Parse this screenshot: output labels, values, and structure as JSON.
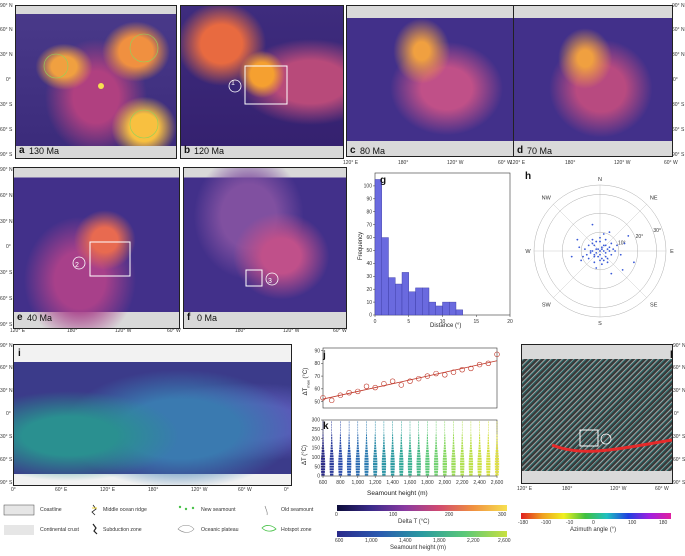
{
  "maps": [
    {
      "id": "a",
      "letter": "a",
      "age": "130 Ma"
    },
    {
      "id": "b",
      "letter": "b",
      "age": "120 Ma",
      "marker": "1"
    },
    {
      "id": "c",
      "letter": "c",
      "age": "80 Ma"
    },
    {
      "id": "d",
      "letter": "d",
      "age": "70 Ma"
    },
    {
      "id": "e",
      "letter": "e",
      "age": "40 Ma",
      "marker": "2"
    },
    {
      "id": "f",
      "letter": "f",
      "age": "0 Ma",
      "marker": "3"
    }
  ],
  "lat_ticks": [
    "90° N",
    "60° N",
    "30° N",
    "0°",
    "30° S",
    "60° S",
    "90° S"
  ],
  "lon_ticks_row": [
    "120° E",
    "180°",
    "120° W",
    "60° W"
  ],
  "lon_ticks_i": [
    "0°",
    "60° E",
    "120° E",
    "180°",
    "120° W",
    "60° W",
    "0°"
  ],
  "lat_ticks_i": [
    "90° N",
    "60° N",
    "30° N",
    "0°",
    "30° S",
    "60° S",
    "90° S"
  ],
  "panel_g": {
    "letter": "g",
    "chart_data": {
      "type": "bar",
      "xlabel": "Distance (°)",
      "ylabel": "Frequency",
      "xlim": [
        0,
        20
      ],
      "ylim": [
        0,
        110
      ],
      "x_ticks": [
        "0",
        "5",
        "10",
        "15",
        "20"
      ],
      "y_ticks": [
        "0",
        "10",
        "20",
        "30",
        "40",
        "50",
        "60",
        "70",
        "80",
        "90",
        "100"
      ],
      "bin_starts": [
        0,
        1,
        2,
        3,
        4,
        5,
        6,
        7,
        8,
        9,
        10,
        11,
        12
      ],
      "values": [
        105,
        60,
        29,
        24,
        33,
        18,
        21,
        21,
        10,
        7,
        10,
        10,
        4
      ],
      "color": "#6a6adf"
    }
  },
  "panel_h": {
    "letter": "h",
    "directions": [
      "N",
      "NE",
      "E",
      "SE",
      "S",
      "SW",
      "W",
      "NW"
    ],
    "rings": [
      "10°",
      "20°",
      "30°"
    ],
    "chart_data": {
      "type": "scatter",
      "note_points": "approximate offsets in degrees (east, north)",
      "points": [
        [
          0,
          0
        ],
        [
          1,
          2
        ],
        [
          -2,
          1
        ],
        [
          3,
          -1
        ],
        [
          -1,
          -3
        ],
        [
          2,
          3
        ],
        [
          -3,
          -2
        ],
        [
          4,
          1
        ],
        [
          -4,
          0
        ],
        [
          1,
          -4
        ],
        [
          5,
          2
        ],
        [
          -5,
          -1
        ],
        [
          2,
          -5
        ],
        [
          -2,
          5
        ],
        [
          6,
          -2
        ],
        [
          -6,
          3
        ],
        [
          3,
          6
        ],
        [
          -3,
          -6
        ],
        [
          7,
          1
        ],
        [
          -7,
          -2
        ],
        [
          0,
          7
        ],
        [
          1,
          -7
        ],
        [
          8,
          0
        ],
        [
          -8,
          1
        ],
        [
          4,
          -6
        ],
        [
          -4,
          6
        ],
        [
          9,
          3
        ],
        [
          -9,
          -3
        ],
        [
          2,
          9
        ],
        [
          -2,
          -9
        ],
        [
          11,
          -2
        ],
        [
          -11,
          2
        ],
        [
          5,
          10
        ],
        [
          -10,
          -5
        ],
        [
          13,
          4
        ],
        [
          -12,
          6
        ],
        [
          6,
          -12
        ],
        [
          -15,
          -3
        ],
        [
          15,
          8
        ],
        [
          18,
          -6
        ],
        [
          -4,
          14
        ],
        [
          12,
          -10
        ],
        [
          0,
          -2
        ],
        [
          2,
          0
        ],
        [
          -1,
          1
        ],
        [
          1,
          1
        ],
        [
          -2,
          -1
        ],
        [
          3,
          3
        ],
        [
          -3,
          3
        ],
        [
          3,
          -3
        ],
        [
          -3,
          -3
        ],
        [
          5,
          0
        ],
        [
          -5,
          0
        ],
        [
          0,
          5
        ],
        [
          0,
          -5
        ],
        [
          6,
          4
        ],
        [
          -6,
          -4
        ],
        [
          4,
          -4
        ],
        [
          -4,
          4
        ]
      ]
    }
  },
  "panel_i": {
    "letter": "i"
  },
  "panel_j": {
    "letter": "j",
    "ylabel": "ΔTₘₐₓ (°C)",
    "ylabel_main": "ΔT",
    "ylabel_sub": "max",
    "ylabel_unit": "(°C)",
    "y_ticks": [
      "50",
      "60",
      "70",
      "80",
      "90"
    ],
    "chart_data": {
      "type": "scatter",
      "x": [
        600,
        700,
        800,
        900,
        1000,
        1100,
        1200,
        1300,
        1400,
        1500,
        1600,
        1700,
        1800,
        1900,
        2000,
        2100,
        2200,
        2300,
        2400,
        2500,
        2600
      ],
      "y": [
        53,
        51,
        55,
        57,
        58,
        62,
        61,
        64,
        66,
        63,
        66,
        68,
        70,
        72,
        71,
        73,
        75,
        76,
        79,
        80,
        87
      ],
      "ylim": [
        45,
        92
      ],
      "trend": [
        [
          600,
          52
        ],
        [
          2600,
          82
        ]
      ],
      "color": "#c0392b"
    }
  },
  "panel_k": {
    "letter": "k",
    "ylabel": "ΔT (°C)",
    "xlabel": "Seamount height (m)",
    "x_ticks": [
      "600",
      "800",
      "1,000",
      "1,200",
      "1,400",
      "1,600",
      "1,800",
      "2,000",
      "2,200",
      "2,400",
      "2,600"
    ],
    "y_ticks": [
      "0",
      "50",
      "100",
      "150",
      "200",
      "250",
      "300"
    ],
    "chart_data": {
      "type": "scatter",
      "x_range": [
        600,
        2600
      ],
      "ylim": [
        0,
        300
      ],
      "note": "dense vertical violin-like strips, one per 100 m height bin",
      "bins": [
        600,
        700,
        800,
        900,
        1000,
        1100,
        1200,
        1300,
        1400,
        1500,
        1600,
        1700,
        1800,
        1900,
        2000,
        2100,
        2200,
        2300,
        2400,
        2500,
        2600
      ]
    }
  },
  "panel_l": {
    "letter": "l"
  },
  "lon_ticks_l": [
    "120° E",
    "180°",
    "120° W",
    "60° W"
  ],
  "legend": {
    "coastline": "Coastline",
    "continental_crust": "Continental crust",
    "ridge": "Middle ocean ridge",
    "subduction": "Subduction zone",
    "new_seamount": "New seamount",
    "plateau": "Oceanic plateau",
    "old_seamount": "Old seamount",
    "hotspot": "Hotspot zone"
  },
  "colorbar_delta": {
    "title": "Delta T (°C)",
    "ticks": [
      "0",
      "100",
      "200",
      "300"
    ]
  },
  "colorbar_height": {
    "title": "Seamount height (m)",
    "ticks": [
      "600",
      "1,000",
      "1,400",
      "1,800",
      "2,200",
      "2,600"
    ]
  },
  "colorbar_azimuth": {
    "title": "Azimuth angle (°)",
    "ticks": [
      "-180",
      "-100",
      "-10",
      "0",
      "100",
      "180"
    ]
  }
}
